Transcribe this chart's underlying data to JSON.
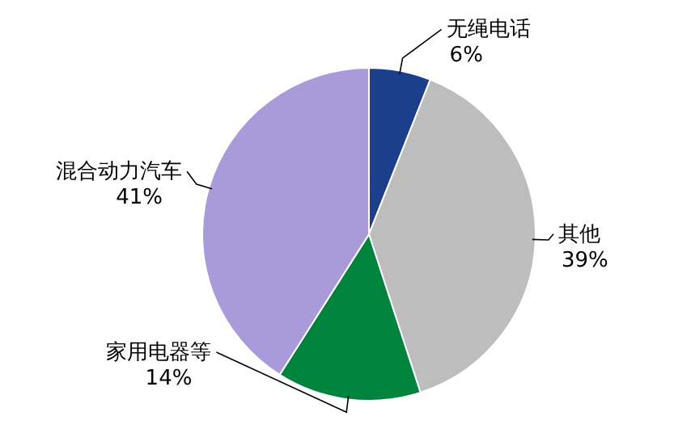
{
  "chart_data": {
    "type": "pie",
    "categories": [
      "无绳电话",
      "其他",
      "家用电器等",
      "混合动力汽车"
    ],
    "values": [
      6,
      39,
      14,
      41
    ],
    "colors": [
      "#1c3f8c",
      "#bdbdbd",
      "#00843d",
      "#a99bd9"
    ],
    "value_labels": [
      "6%",
      "39%",
      "14%",
      "41%"
    ]
  }
}
